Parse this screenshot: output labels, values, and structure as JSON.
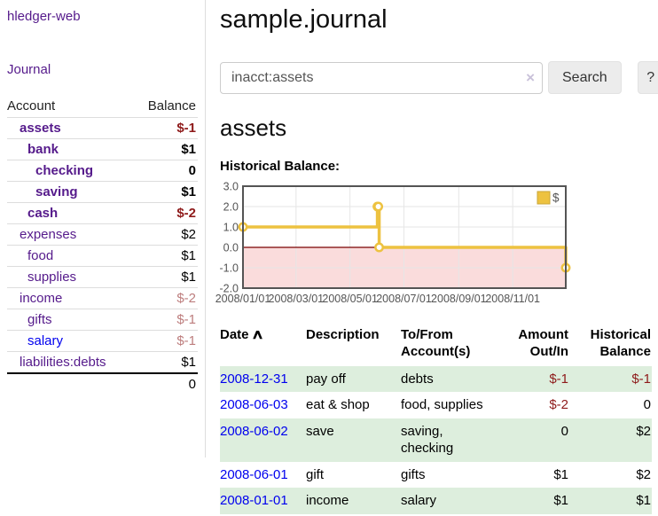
{
  "sidebar": {
    "app_title": "hledger-web",
    "journal_link": "Journal",
    "accounts_table": {
      "headers": [
        "Account",
        "Balance"
      ],
      "rows": [
        {
          "account": "assets",
          "depth": 0,
          "balance": "$-1",
          "bold": true,
          "negative": "strong"
        },
        {
          "account": "bank",
          "depth": 1,
          "balance": "$1",
          "bold": true
        },
        {
          "account": "checking",
          "depth": 2,
          "balance": "0",
          "bold": true
        },
        {
          "account": "saving",
          "depth": 2,
          "balance": "$1",
          "bold": true
        },
        {
          "account": "cash",
          "depth": 1,
          "balance": "$-2",
          "bold": true,
          "negative": "strong"
        },
        {
          "account": "expenses",
          "depth": 0,
          "balance": "$2"
        },
        {
          "account": "food",
          "depth": 1,
          "balance": "$1"
        },
        {
          "account": "supplies",
          "depth": 1,
          "balance": "$1"
        },
        {
          "account": "income",
          "depth": 0,
          "balance": "$-2",
          "negative": "soft"
        },
        {
          "account": "gifts",
          "depth": 1,
          "balance": "$-1",
          "negative": "soft"
        },
        {
          "account": "salary",
          "depth": 1,
          "balance": "$-1",
          "negative": "soft",
          "unvisited": true
        },
        {
          "account": "liabilities:debts",
          "depth": 0,
          "balance": "$1"
        }
      ],
      "total": "0"
    }
  },
  "header": {
    "title": "sample.journal"
  },
  "search": {
    "value": "inacct:assets",
    "clear_icon": "×",
    "search_button": "Search",
    "help_button": "?"
  },
  "main": {
    "account_heading": "assets",
    "chart_title": "Historical Balance:"
  },
  "chart_data": {
    "type": "line",
    "step": true,
    "title": "Historical Balance:",
    "legend_label": "$",
    "legend_position": "top-right",
    "grid": true,
    "series": [
      {
        "name": "$",
        "points": [
          [
            "2008-01-01",
            1
          ],
          [
            "2008-06-01",
            2
          ],
          [
            "2008-06-02",
            2
          ],
          [
            "2008-06-03",
            0
          ],
          [
            "2008-12-31",
            -1
          ]
        ]
      }
    ],
    "x_ticks": [
      "2008/01/01",
      "2008/03/01",
      "2008/05/01",
      "2008/07/01",
      "2008/09/01",
      "2008/11/01"
    ],
    "y_ticks": [
      "3.0",
      "2.0",
      "1.0",
      "0.0",
      "-1.0",
      "-2.0"
    ],
    "ylim": [
      -2,
      3
    ],
    "colors": {
      "line": "#edc240",
      "marker_fill": "#ffffff",
      "negative_region": "#fadcdc",
      "zero_line": "#7a0000",
      "gridline": "#e6e6e6",
      "border": "#545454",
      "tick_label": "#545454"
    }
  },
  "register": {
    "headers": [
      "Date",
      "Description",
      "To/From Account(s)",
      "Amount Out/In",
      "Historical Balance"
    ],
    "sort_indicator": "∧",
    "rows": [
      {
        "date": "2008-12-31",
        "description": "pay off",
        "accounts": "debts",
        "amount": "$-1",
        "balance": "$-1",
        "amount_neg": true,
        "balance_neg": true
      },
      {
        "date": "2008-06-03",
        "description": "eat & shop",
        "accounts": "food, supplies",
        "amount": "$-2",
        "balance": "0",
        "amount_neg": true
      },
      {
        "date": "2008-06-02",
        "description": "save",
        "accounts": "saving, checking",
        "amount": "0",
        "balance": "$2"
      },
      {
        "date": "2008-06-01",
        "description": "gift",
        "accounts": "gifts",
        "amount": "$1",
        "balance": "$2"
      },
      {
        "date": "2008-01-01",
        "description": "income",
        "accounts": "salary",
        "amount": "$1",
        "balance": "$1"
      }
    ]
  }
}
